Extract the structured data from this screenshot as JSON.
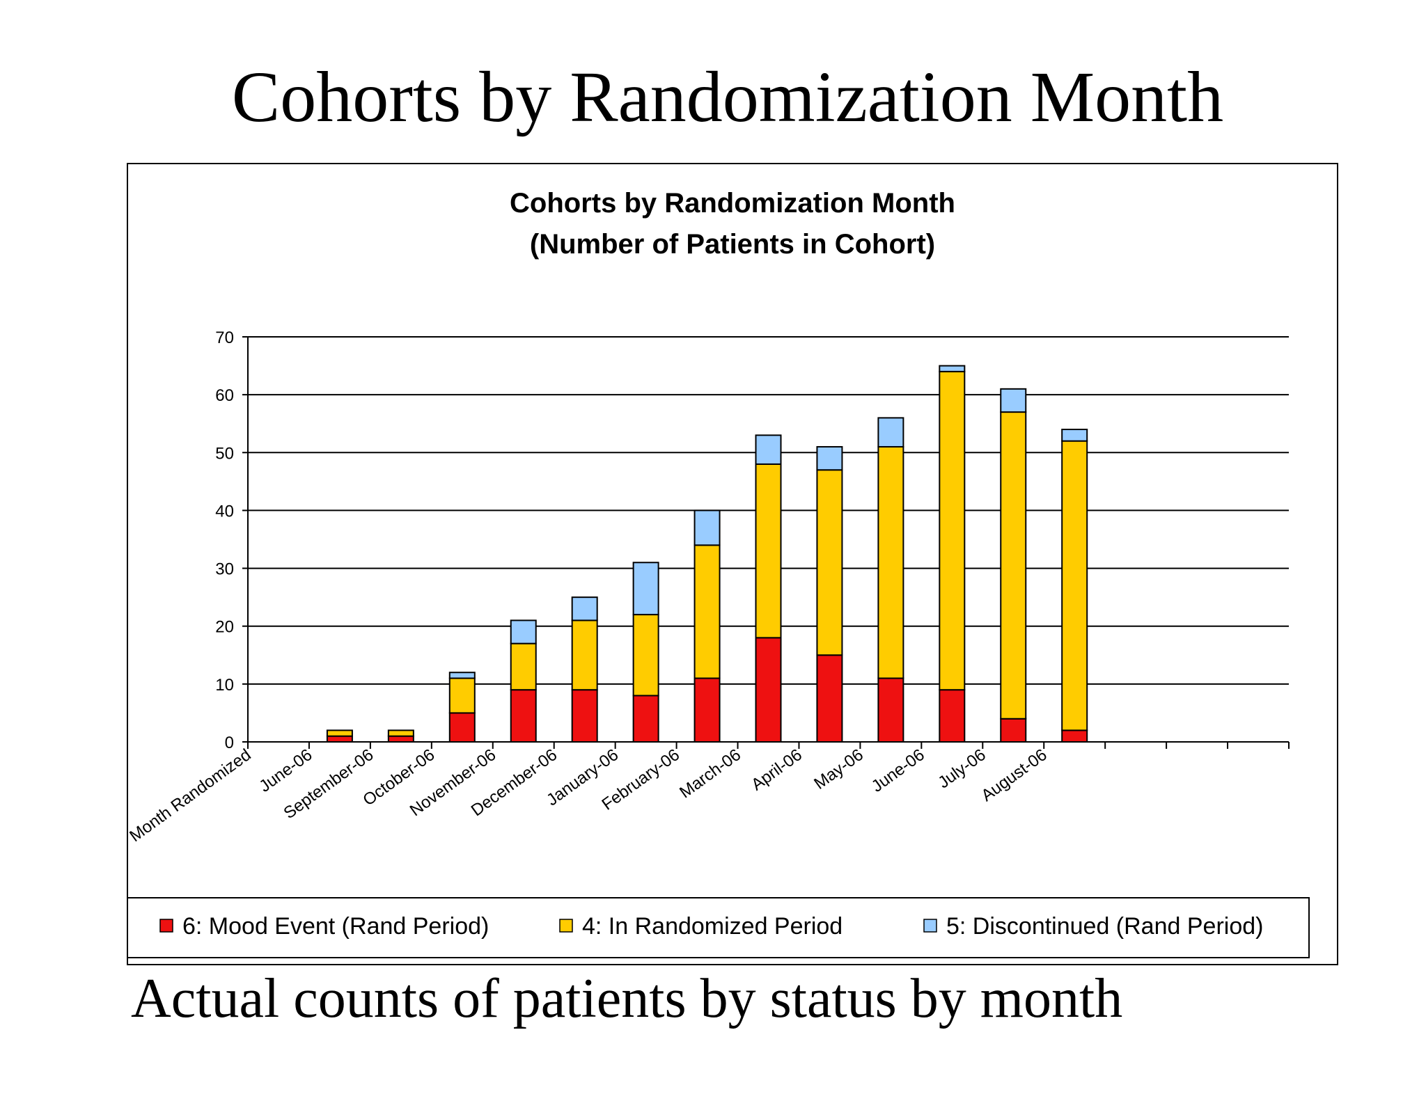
{
  "slide": {
    "title": "Cohorts by Randomization Month",
    "caption": "Actual counts of patients by status by month"
  },
  "colors": {
    "mood_event": "#ee1111",
    "in_randomized": "#ffcc00",
    "discontinued": "#99ccff"
  },
  "chart_data": {
    "type": "bar",
    "stacked": true,
    "title": "Cohorts by Randomization Month",
    "subtitle": "(Number of Patients in Cohort)",
    "xlabel": "",
    "ylabel": "",
    "ylim": [
      0,
      70
    ],
    "yticks": [
      0,
      10,
      20,
      30,
      40,
      50,
      60,
      70
    ],
    "grid": true,
    "legend_position": "bottom",
    "categories": [
      "Month Randomized",
      "June-06",
      "September-06",
      "October-06",
      "November-06",
      "December-06",
      "January-06",
      "February-06",
      "March-06",
      "April-06",
      "May-06",
      "June-06",
      "July-06",
      "August-06",
      "",
      "",
      ""
    ],
    "series": [
      {
        "name": "6: Mood Event (Rand Period)",
        "color": "#ee1111",
        "values": [
          0,
          1,
          1,
          5,
          9,
          9,
          8,
          11,
          18,
          15,
          11,
          9,
          4,
          2,
          0,
          0,
          0
        ]
      },
      {
        "name": "4: In Randomized Period",
        "color": "#ffcc00",
        "values": [
          0,
          1,
          1,
          6,
          8,
          12,
          14,
          23,
          30,
          32,
          40,
          55,
          53,
          50,
          0,
          0,
          0
        ]
      },
      {
        "name": "5: Discontinued (Rand Period)",
        "color": "#99ccff",
        "values": [
          0,
          0,
          0,
          1,
          4,
          4,
          9,
          6,
          5,
          4,
          5,
          1,
          4,
          2,
          0,
          0,
          0
        ]
      }
    ]
  }
}
